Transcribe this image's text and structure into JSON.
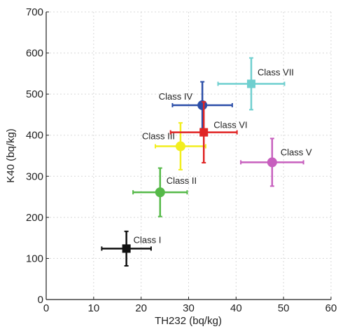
{
  "chart_data": {
    "type": "scatter",
    "title": "",
    "xlabel": "TH232 (bq/kg)",
    "ylabel": "K40 (bq/kg)",
    "xlim": [
      0,
      60
    ],
    "ylim": [
      0,
      700
    ],
    "x_ticks": [
      "0",
      "10",
      "20",
      "30",
      "40",
      "50",
      "60"
    ],
    "y_ticks": [
      "0",
      "100",
      "200",
      "300",
      "400",
      "500",
      "600",
      "700"
    ],
    "grid": true,
    "legend": "none",
    "series": [
      {
        "name": "Class I",
        "x": 16.9,
        "y": 124,
        "x_err": 5.2,
        "y_err": 42,
        "marker": "square",
        "color": "#111111"
      },
      {
        "name": "Class II",
        "x": 24.0,
        "y": 261,
        "x_err": 5.7,
        "y_err": 59,
        "marker": "circle",
        "color": "#55b948"
      },
      {
        "name": "Class III",
        "x": 28.3,
        "y": 373,
        "x_err": 5.3,
        "y_err": 57,
        "marker": "circle",
        "color": "#f2ee1f"
      },
      {
        "name": "Class IV",
        "x": 32.9,
        "y": 473,
        "x_err": 6.3,
        "y_err": 57,
        "marker": "circle",
        "color": "#2b4ea8"
      },
      {
        "name": "Class V",
        "x": 47.6,
        "y": 334,
        "x_err": 6.6,
        "y_err": 58,
        "marker": "circle",
        "color": "#c75fbe"
      },
      {
        "name": "Class VI",
        "x": 33.2,
        "y": 407,
        "x_err": 7.0,
        "y_err": 74,
        "marker": "square",
        "color": "#e02424"
      },
      {
        "name": "Class VII",
        "x": 43.2,
        "y": 525,
        "x_err": 7.0,
        "y_err": 63,
        "marker": "square",
        "color": "#6fcfcf"
      }
    ]
  }
}
